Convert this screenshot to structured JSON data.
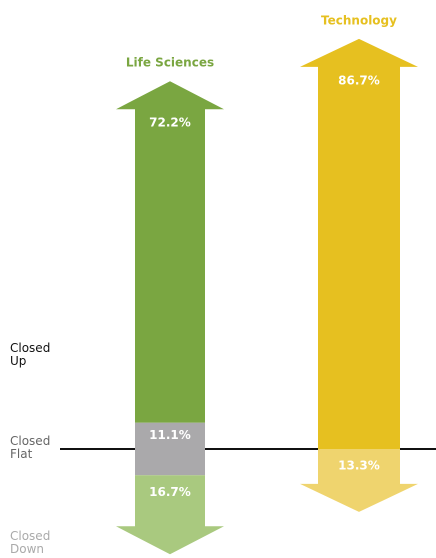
{
  "chart_data": {
    "type": "arrow",
    "categories": [
      "Closed Up",
      "Closed Flat",
      "Closed Down"
    ],
    "series": [
      {
        "name": "Life Sciences",
        "colors": [
          "#7aa641",
          "#aaa9ab",
          "#a9c97f"
        ],
        "values": [
          72.2,
          11.1,
          16.7
        ],
        "value_labels": [
          "72.2%",
          "11.1%",
          "16.7%"
        ]
      },
      {
        "name": "Technology",
        "colors": [
          "#e6c020",
          null,
          "#efd46e"
        ],
        "values": [
          86.7,
          null,
          13.3
        ],
        "value_labels": [
          "86.7%",
          null,
          "13.3%"
        ]
      }
    ]
  }
}
